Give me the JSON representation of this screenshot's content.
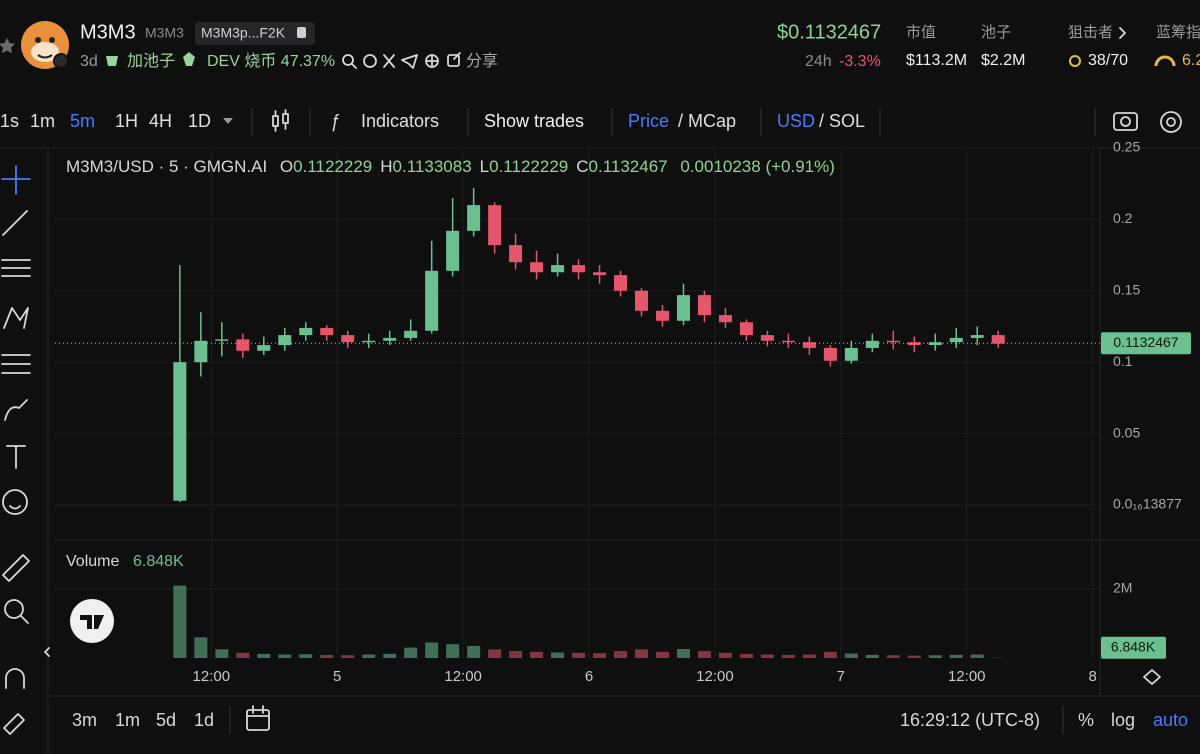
{
  "header": {
    "name": "M3M3",
    "symbol": "M3M3",
    "address": "M3M3p...F2K",
    "age": "3d",
    "add_pool": "加池子",
    "dev_burn": "DEV 烧币 47.37%",
    "share": "分享",
    "price": "$0.1132467",
    "change_period": "24h",
    "change": "-3.3%",
    "stats": [
      {
        "label": "市值",
        "value": "$113.2M"
      },
      {
        "label": "池子",
        "value": "$2.2M"
      },
      {
        "label": "狙击者",
        "value": "38/70"
      },
      {
        "label": "蓝筹指",
        "value": "6.2"
      }
    ]
  },
  "toolbar": {
    "intervals": [
      "1s",
      "1m",
      "5m",
      "1H",
      "4H",
      "1D"
    ],
    "indicators": "Indicators",
    "show_trades": "Show trades",
    "price": "Price",
    "mcap": "/ MCap",
    "usd": "USD",
    "sol": "/ SOL"
  },
  "chart_data": [
    {
      "type": "candlestick",
      "title": "M3M3/USD · 5 · GMGN.AI",
      "legend": [
        {
          "key": "O",
          "value": "0.1122229"
        },
        {
          "key": "H",
          "value": "0.1133083"
        },
        {
          "key": "L",
          "value": "0.1122229"
        },
        {
          "key": "C",
          "value": "0.1132467"
        }
      ],
      "change": "0.0010238 (+0.91%)",
      "x": [
        9,
        11,
        13,
        15,
        17,
        19,
        21,
        23,
        25,
        27,
        29,
        31,
        33,
        35,
        37,
        39,
        41,
        43,
        45,
        47,
        49,
        51,
        53,
        55,
        57,
        59,
        61,
        63,
        65,
        67,
        69,
        71,
        73,
        75,
        77,
        79,
        81,
        83,
        85,
        87
      ],
      "open": [
        0.003,
        0.1,
        0.115,
        0.116,
        0.108,
        0.112,
        0.119,
        0.124,
        0.119,
        0.114,
        0.115,
        0.117,
        0.122,
        0.164,
        0.192,
        0.21,
        0.182,
        0.17,
        0.163,
        0.168,
        0.163,
        0.161,
        0.15,
        0.136,
        0.129,
        0.147,
        0.133,
        0.128,
        0.119,
        0.115,
        0.114,
        0.11,
        0.101,
        0.11,
        0.115,
        0.114,
        0.112,
        0.114,
        0.117,
        0.119
      ],
      "high": [
        0.168,
        0.135,
        0.128,
        0.12,
        0.118,
        0.124,
        0.128,
        0.126,
        0.122,
        0.12,
        0.122,
        0.13,
        0.185,
        0.215,
        0.222,
        0.212,
        0.19,
        0.178,
        0.176,
        0.172,
        0.168,
        0.164,
        0.152,
        0.14,
        0.155,
        0.15,
        0.138,
        0.13,
        0.122,
        0.12,
        0.118,
        0.112,
        0.115,
        0.12,
        0.122,
        0.118,
        0.12,
        0.124,
        0.125,
        0.122
      ],
      "low": [
        0.002,
        0.09,
        0.104,
        0.103,
        0.105,
        0.108,
        0.115,
        0.115,
        0.11,
        0.11,
        0.112,
        0.115,
        0.12,
        0.16,
        0.188,
        0.176,
        0.165,
        0.158,
        0.16,
        0.158,
        0.155,
        0.146,
        0.132,
        0.125,
        0.126,
        0.128,
        0.124,
        0.115,
        0.111,
        0.11,
        0.105,
        0.097,
        0.099,
        0.107,
        0.109,
        0.107,
        0.108,
        0.11,
        0.112,
        0.11
      ],
      "close": [
        0.1,
        0.115,
        0.116,
        0.108,
        0.112,
        0.119,
        0.124,
        0.119,
        0.114,
        0.115,
        0.117,
        0.122,
        0.164,
        0.192,
        0.21,
        0.182,
        0.17,
        0.163,
        0.168,
        0.163,
        0.161,
        0.15,
        0.136,
        0.129,
        0.147,
        0.133,
        0.128,
        0.119,
        0.115,
        0.114,
        0.11,
        0.101,
        0.11,
        0.115,
        0.114,
        0.112,
        0.114,
        0.117,
        0.119,
        0.113
      ],
      "up_color": "#6cc08f",
      "down_color": "#e3566c",
      "current_price": 0.1132467,
      "xlim": [
        -2.9,
        96.7
      ],
      "xticks": [
        {
          "value": 12,
          "label": "12:00"
        },
        {
          "value": 24,
          "label": "5"
        },
        {
          "value": 36,
          "label": "12:00"
        },
        {
          "value": 48,
          "label": "6"
        },
        {
          "value": 60,
          "label": "12:00"
        },
        {
          "value": 72,
          "label": "7"
        },
        {
          "value": 84,
          "label": "12:00"
        },
        {
          "value": 96,
          "label": "8"
        }
      ],
      "ylim": [
        -0.0245,
        0.25
      ],
      "yticks": [
        {
          "value": 1.38e-17,
          "label": "0.0₁₆13877"
        },
        0.05,
        0.1,
        0.15,
        0.2,
        0.25
      ],
      "grid": true
    },
    {
      "type": "bar",
      "title": "Volume",
      "values": [
        2100000,
        600000,
        250000,
        150000,
        120000,
        100000,
        110000,
        90000,
        80000,
        100000,
        120000,
        300000,
        450000,
        400000,
        350000,
        250000,
        200000,
        180000,
        160000,
        150000,
        140000,
        200000,
        250000,
        180000,
        260000,
        200000,
        150000,
        120000,
        100000,
        90000,
        100000,
        180000,
        130000,
        90000,
        80000,
        70000,
        80000,
        90000,
        100000,
        6848
      ],
      "current": {
        "value": 6848,
        "label": "6.848K"
      },
      "ylim": [
        0,
        3420000
      ],
      "yticks": [
        {
          "value": 2000000,
          "label": "2M"
        }
      ]
    }
  ],
  "footer": {
    "ranges": [
      "3m",
      "1m",
      "5d",
      "1d"
    ],
    "clock": "16:29:12 (UTC-8)",
    "percent": "%",
    "log": "log",
    "auto": "auto"
  }
}
